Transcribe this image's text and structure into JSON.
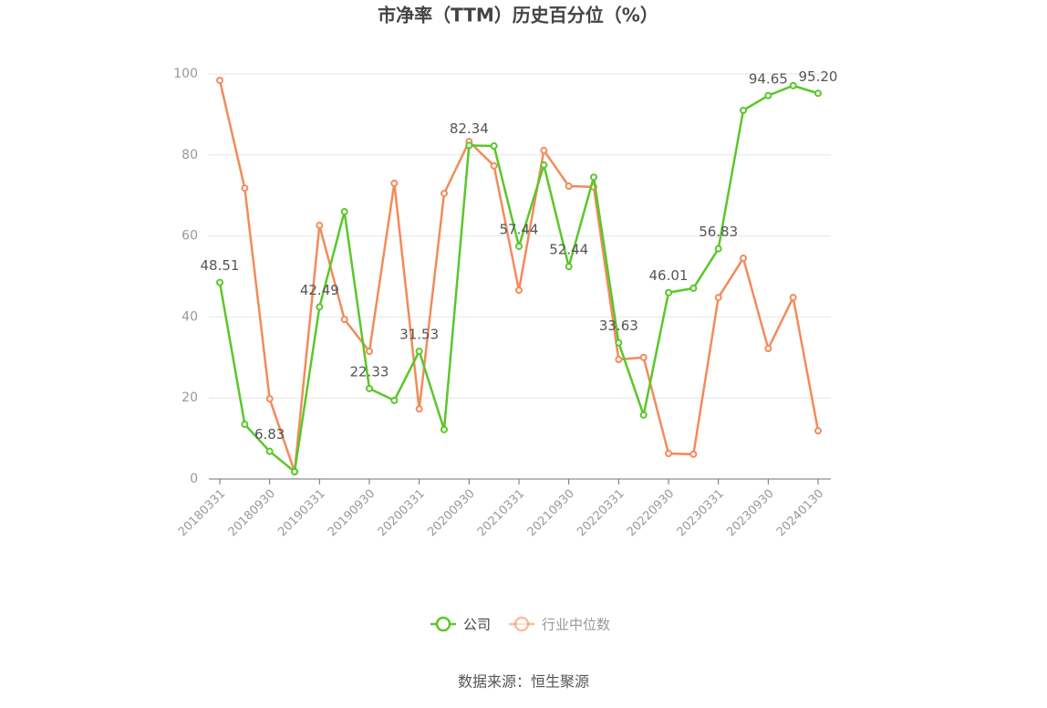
{
  "chart_data": {
    "type": "line",
    "title": "市净率（TTM）历史百分位（%）",
    "source": "数据来源：恒生聚源",
    "categories": [
      "20180331",
      null,
      "20180930",
      null,
      "20190331",
      null,
      "20190930",
      null,
      "20200331",
      null,
      "20200930",
      null,
      "20210331",
      null,
      "20210930",
      null,
      "20220331",
      null,
      "20220930",
      null,
      "20230331",
      null,
      "20230930",
      null,
      "20240130"
    ],
    "series": [
      {
        "name": "公司",
        "color": "#5ac72a",
        "values": [
          48.51,
          13.5,
          6.83,
          1.8,
          42.49,
          66.0,
          22.33,
          19.4,
          31.53,
          12.2,
          82.34,
          82.2,
          57.44,
          77.5,
          52.44,
          74.5,
          33.63,
          15.8,
          46.01,
          47.1,
          56.83,
          91.0,
          94.65,
          97.1,
          95.2
        ],
        "value_labels": [
          "48.51",
          null,
          "6.83",
          null,
          "42.49",
          null,
          "22.33",
          null,
          "31.53",
          null,
          "82.34",
          null,
          "57.44",
          null,
          "52.44",
          null,
          "33.63",
          null,
          "46.01",
          null,
          "56.83",
          null,
          "94.65",
          null,
          "95.20"
        ]
      },
      {
        "name": "行业中位数",
        "color": "#f28b5a",
        "values": [
          98.4,
          71.8,
          19.8,
          1.8,
          62.6,
          39.4,
          31.5,
          73.0,
          17.3,
          70.5,
          83.3,
          77.3,
          46.6,
          81.1,
          72.3,
          72.1,
          29.5,
          30.0,
          6.3,
          6.1,
          44.8,
          54.5,
          32.2,
          44.8,
          11.9
        ]
      }
    ],
    "ylim": [
      0,
      100
    ],
    "yticks": [
      0,
      20,
      40,
      60,
      80,
      100
    ],
    "grid": true
  }
}
